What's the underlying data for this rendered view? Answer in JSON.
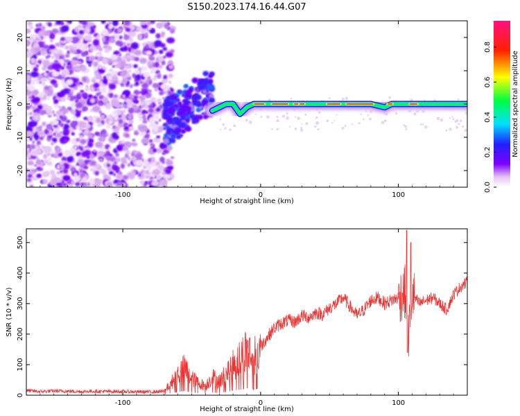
{
  "title": "S150.2023.174.16.44.G07",
  "chart_data": [
    {
      "type": "heatmap",
      "xlabel": "Height of straight line (km)",
      "ylabel": "Frequency (Hz)",
      "xlim": [
        -170,
        150
      ],
      "ylim": [
        -25,
        25
      ],
      "xticks": [
        -100,
        0,
        100
      ],
      "yticks": [
        -20,
        -10,
        0,
        10,
        20
      ],
      "colorbar": {
        "label": "Normalized spectral amplitude",
        "range": [
          0,
          0.95
        ],
        "ticks": [
          0.0,
          0.2,
          0.4,
          0.6,
          0.8
        ],
        "colormap": "white-purple-blue-cyan-green-yellow-red-pink"
      },
      "features": {
        "noise_region_x": [
          -170,
          -70
        ],
        "transition_region_x": [
          -70,
          -35
        ],
        "signal_line": {
          "x": [
            -35,
            -30,
            -25,
            -20,
            -15,
            -10,
            -5,
            0,
            20,
            40,
            60,
            80,
            90,
            95,
            100,
            110,
            120,
            150
          ],
          "frequency": [
            -2,
            -1,
            0,
            0,
            -3,
            -1,
            0,
            0,
            0,
            0,
            0,
            0,
            -1,
            0,
            0,
            0,
            0,
            0
          ]
        }
      }
    },
    {
      "type": "line",
      "xlabel": "Height of straight line (km)",
      "ylabel": "SNR (10 * v/v)",
      "xlim": [
        -170,
        150
      ],
      "ylim": [
        0,
        545
      ],
      "xticks": [
        -100,
        0,
        100
      ],
      "yticks": [
        0,
        100,
        200,
        300,
        400,
        500
      ],
      "color": "#ee3333",
      "series": [
        {
          "x": [
            -170,
            -160,
            -150,
            -140,
            -130,
            -120,
            -110,
            -100,
            -90,
            -80,
            -70,
            -65,
            -60,
            -55,
            -50,
            -45,
            -40,
            -35,
            -30,
            -25,
            -20,
            -15,
            -10,
            -5,
            0,
            5,
            10,
            15,
            20,
            25,
            30,
            35,
            40,
            45,
            50,
            55,
            60,
            65,
            70,
            75,
            80,
            85,
            90,
            95,
            100,
            105,
            107,
            110,
            115,
            120,
            125,
            130,
            135,
            140,
            145,
            150
          ],
          "values": [
            15,
            12,
            14,
            13,
            12,
            13,
            12,
            12,
            11,
            11,
            12,
            40,
            70,
            90,
            55,
            40,
            30,
            60,
            45,
            70,
            100,
            120,
            150,
            120,
            160,
            190,
            220,
            235,
            245,
            240,
            260,
            255,
            270,
            265,
            285,
            300,
            320,
            290,
            260,
            280,
            310,
            320,
            300,
            310,
            320,
            340,
            180,
            330,
            300,
            310,
            320,
            300,
            280,
            330,
            355,
            370
          ]
        }
      ]
    }
  ]
}
